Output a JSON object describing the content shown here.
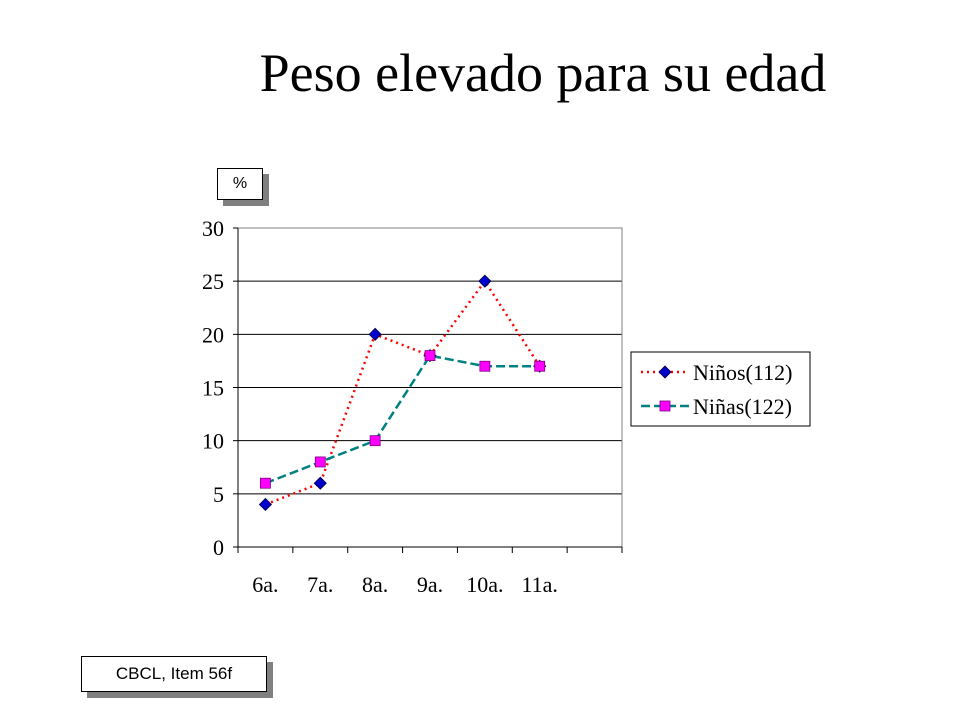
{
  "title": "Peso elevado para su edad",
  "unit_label": "%",
  "source_label": "CBCL, Item 56f",
  "chart_data": {
    "type": "line",
    "categories": [
      "6a.",
      "7a.",
      "8a.",
      "9a.",
      "10a.",
      "11a."
    ],
    "ylim": [
      0,
      30
    ],
    "yticks": [
      0,
      5,
      10,
      15,
      20,
      25,
      30
    ],
    "grid": true,
    "legend_position": "right",
    "series": [
      {
        "name": "Niños(112)",
        "values": [
          4,
          6,
          20,
          18,
          25,
          17
        ],
        "color": "#FF0000",
        "marker": "diamond",
        "marker_color": "#0000CC",
        "dash": "2,4"
      },
      {
        "name": "Niñas(122)",
        "values": [
          6,
          8,
          10,
          18,
          17,
          17
        ],
        "color": "#008080",
        "marker": "square",
        "marker_color": "#FF00FF",
        "dash": "9,4"
      }
    ]
  }
}
